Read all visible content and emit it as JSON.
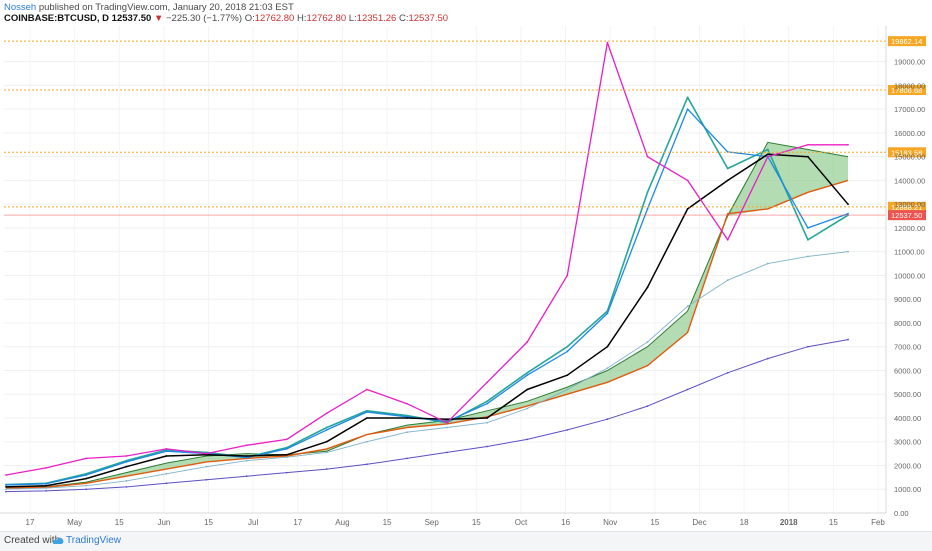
{
  "header": {
    "author": "Nosseh",
    "published_text": "published on TradingView.com, January 20, 2018 21:03 EST",
    "symbol": "COINBASE:BTCUSD, D",
    "last_price": "12537.50",
    "change_arrow": "▼",
    "change": "−225.30 (−1.77%)",
    "o_label": "O:",
    "o_value": "12762.80",
    "h_label": "H:",
    "h_value": "12762.80",
    "l_label": "L:",
    "l_value": "12351.26",
    "c_label": "C:",
    "c_value": "12537.50"
  },
  "footer": {
    "created_with": "Created with",
    "brand": "TradingView"
  },
  "chart_data": {
    "type": "line",
    "title": "",
    "xlabel": "",
    "ylabel": "",
    "ylim": [
      0,
      20500
    ],
    "grid": true,
    "legend": "none",
    "y_ticks": [
      "0.00",
      "1000.00",
      "2000.00",
      "3000.00",
      "4000.00",
      "5000.00",
      "6000.00",
      "7000.00",
      "8000.00",
      "9000.00",
      "10000.00",
      "11000.00",
      "12000.00",
      "13000.00",
      "14000.00",
      "15000.00",
      "16000.00",
      "17000.00",
      "18000.00",
      "19000.00"
    ],
    "x_ticks": [
      "17",
      "May",
      "15",
      "Jun",
      "15",
      "Jul",
      "17",
      "Aug",
      "15",
      "Sep",
      "15",
      "Oct",
      "16",
      "Nov",
      "15",
      "Dec",
      "18",
      "2018",
      "15",
      "Feb"
    ],
    "horizontal_levels": [
      {
        "value": 19862.14,
        "label": "19862.14",
        "color": "#f5a623"
      },
      {
        "value": 17806.68,
        "label": "17806.68",
        "color": "#f5a623"
      },
      {
        "value": 15183.58,
        "label": "15183.58",
        "color": "#f5a623"
      },
      {
        "value": 12888.21,
        "label": "12888.21",
        "color": "#f5a623"
      },
      {
        "value": 12537.5,
        "label": "12537.50",
        "color": "#ef5350"
      }
    ],
    "x_dates": [
      "Apr 10",
      "Apr 25",
      "May 10",
      "May 25",
      "Jun 10",
      "Jun 25",
      "Jul 10",
      "Jul 25",
      "Aug 10",
      "Aug 25",
      "Sep 10",
      "Sep 25",
      "Oct 10",
      "Oct 25",
      "Nov 10",
      "Nov 25",
      "Dec 5",
      "Dec 15",
      "Dec 25",
      "Jan 5",
      "Jan 15",
      "Jan 20"
    ],
    "series": [
      {
        "values": [
          1200,
          1250,
          1650,
          2200,
          2650,
          2550,
          2350,
          2750,
          3600,
          4300,
          4100,
          3800,
          4700,
          5900,
          7000,
          8500,
          13500,
          17500,
          14500,
          15300,
          11500,
          12537
        ],
        "color": "#26a69a"
      },
      {
        "values": [
          1180,
          1230,
          1600,
          2150,
          2600,
          2500,
          2330,
          2700,
          3500,
          4250,
          4050,
          3850,
          4600,
          5800,
          6800,
          8400,
          12800,
          17000,
          15200,
          15000,
          12000,
          12600
        ],
        "color": "#1e88e5"
      },
      {
        "values": [
          1100,
          1150,
          1450,
          1950,
          2400,
          2450,
          2400,
          2450,
          3000,
          4000,
          4000,
          3950,
          4000,
          5200,
          5800,
          7000,
          9500,
          12800,
          14000,
          15100,
          15000,
          13000
        ],
        "color": "#000000"
      },
      {
        "values": [
          1600,
          1900,
          2300,
          2400,
          2700,
          2500,
          2850,
          3100,
          4200,
          5200,
          4600,
          3800,
          5500,
          7200,
          10000,
          19800,
          15000,
          14000,
          11500,
          15000,
          15500,
          15500
        ],
        "color": "#e91ec6"
      },
      {
        "values": [
          1000,
          1050,
          1150,
          1350,
          1650,
          1950,
          2200,
          2350,
          2550,
          3000,
          3400,
          3600,
          3800,
          4400,
          5200,
          6100,
          7200,
          8700,
          9800,
          10500,
          10800,
          11000
        ],
        "color": "#7fb3c8"
      },
      {
        "values": [
          900,
          930,
          1000,
          1100,
          1250,
          1400,
          1550,
          1700,
          1850,
          2050,
          2300,
          2550,
          2800,
          3100,
          3500,
          3950,
          4500,
          5200,
          5900,
          6500,
          7000,
          7300
        ],
        "color": "#5b4fc4"
      }
    ],
    "cloud": {
      "span_a": [
        1050,
        1100,
        1300,
        1700,
        2100,
        2400,
        2500,
        2450,
        2600,
        3300,
        3700,
        3900,
        4300,
        4700,
        5300,
        6000,
        7000,
        8500,
        12500,
        15600,
        15300,
        15000
      ],
      "span_b": [
        1050,
        1080,
        1250,
        1550,
        1850,
        2150,
        2300,
        2400,
        2700,
        3300,
        3600,
        3750,
        4050,
        4500,
        5000,
        5500,
        6200,
        7600,
        12600,
        12800,
        13500,
        14000
      ],
      "fill_color": "#8bc98b",
      "span_b_color": "#e05a10"
    }
  }
}
